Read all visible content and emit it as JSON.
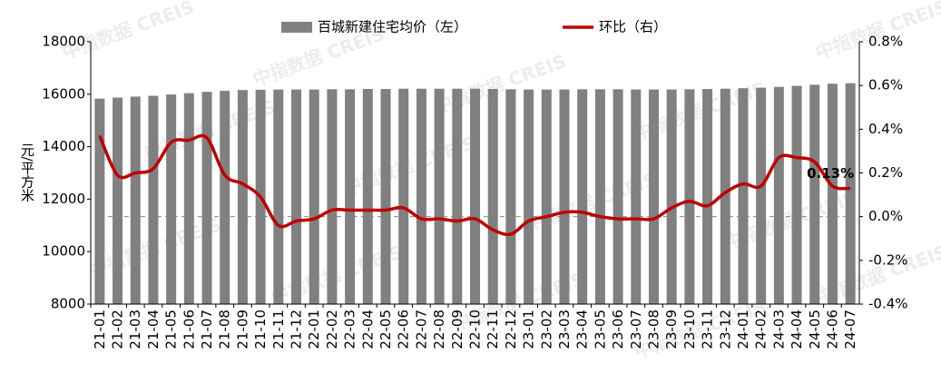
{
  "chart_data": {
    "type": "bar-line",
    "watermark": "中指数据 CREIS",
    "ylabel": "元/平方米",
    "categories": [
      "21-01",
      "21-02",
      "21-03",
      "21-04",
      "21-05",
      "21-06",
      "21-07",
      "21-08",
      "21-09",
      "21-10",
      "21-11",
      "21-12",
      "22-01",
      "22-02",
      "22-03",
      "22-04",
      "22-05",
      "22-06",
      "22-07",
      "22-08",
      "22-09",
      "22-10",
      "22-11",
      "22-12",
      "23-01",
      "23-02",
      "23-03",
      "23-04",
      "23-05",
      "23-06",
      "23-07",
      "23-08",
      "23-09",
      "23-10",
      "23-11",
      "23-12",
      "24-01",
      "24-02",
      "24-03",
      "24-04",
      "24-05",
      "24-06",
      "24-07"
    ],
    "series": [
      {
        "name": "百城新建住宅均价（左）",
        "color": "#808080",
        "type": "bar",
        "axis": "y",
        "values": [
          15830,
          15870,
          15910,
          15940,
          15990,
          16040,
          16090,
          16130,
          16160,
          16170,
          16180,
          16180,
          16180,
          16190,
          16190,
          16200,
          16200,
          16210,
          16210,
          16210,
          16210,
          16210,
          16200,
          16190,
          16180,
          16180,
          16180,
          16190,
          16190,
          16190,
          16180,
          16180,
          16180,
          16190,
          16200,
          16210,
          16230,
          16250,
          16280,
          16320,
          16360,
          16400,
          16420
        ]
      },
      {
        "name": "环比（右）",
        "color": "#c00000",
        "type": "line",
        "axis": "y2",
        "values": [
          0.37,
          0.19,
          0.2,
          0.22,
          0.34,
          0.35,
          0.36,
          0.19,
          0.15,
          0.09,
          -0.04,
          -0.02,
          -0.01,
          0.03,
          0.03,
          0.03,
          0.03,
          0.04,
          -0.01,
          -0.01,
          -0.02,
          -0.01,
          -0.06,
          -0.08,
          -0.02,
          0.0,
          0.02,
          0.02,
          0.0,
          -0.01,
          -0.01,
          -0.01,
          0.04,
          0.07,
          0.05,
          0.11,
          0.15,
          0.14,
          0.27,
          0.27,
          0.25,
          0.14,
          0.13
        ],
        "value_labels": [
          null,
          null,
          null,
          null,
          null,
          null,
          null,
          null,
          null,
          null,
          null,
          null,
          null,
          null,
          null,
          null,
          null,
          null,
          null,
          null,
          null,
          null,
          null,
          null,
          null,
          null,
          null,
          null,
          null,
          null,
          null,
          null,
          null,
          null,
          null,
          null,
          null,
          null,
          null,
          null,
          null,
          null,
          "0.13%"
        ]
      }
    ],
    "ylim": [
      8000,
      18000
    ],
    "yticks": [
      8000,
      10000,
      12000,
      14000,
      16000,
      18000
    ],
    "y2lim": [
      -0.4,
      0.8
    ],
    "y2ticks": [
      {
        "value": -0.4,
        "label": "-0.4%"
      },
      {
        "value": -0.2,
        "label": "-0.2%"
      },
      {
        "value": 0,
        "label": "0.0%"
      },
      {
        "value": 0.2,
        "label": "0.2%"
      },
      {
        "value": 0.4,
        "label": "0.4%"
      },
      {
        "value": 0.6,
        "label": "0.6%"
      },
      {
        "value": 0.8,
        "label": "0.8%"
      }
    ],
    "zero_line": true
  }
}
